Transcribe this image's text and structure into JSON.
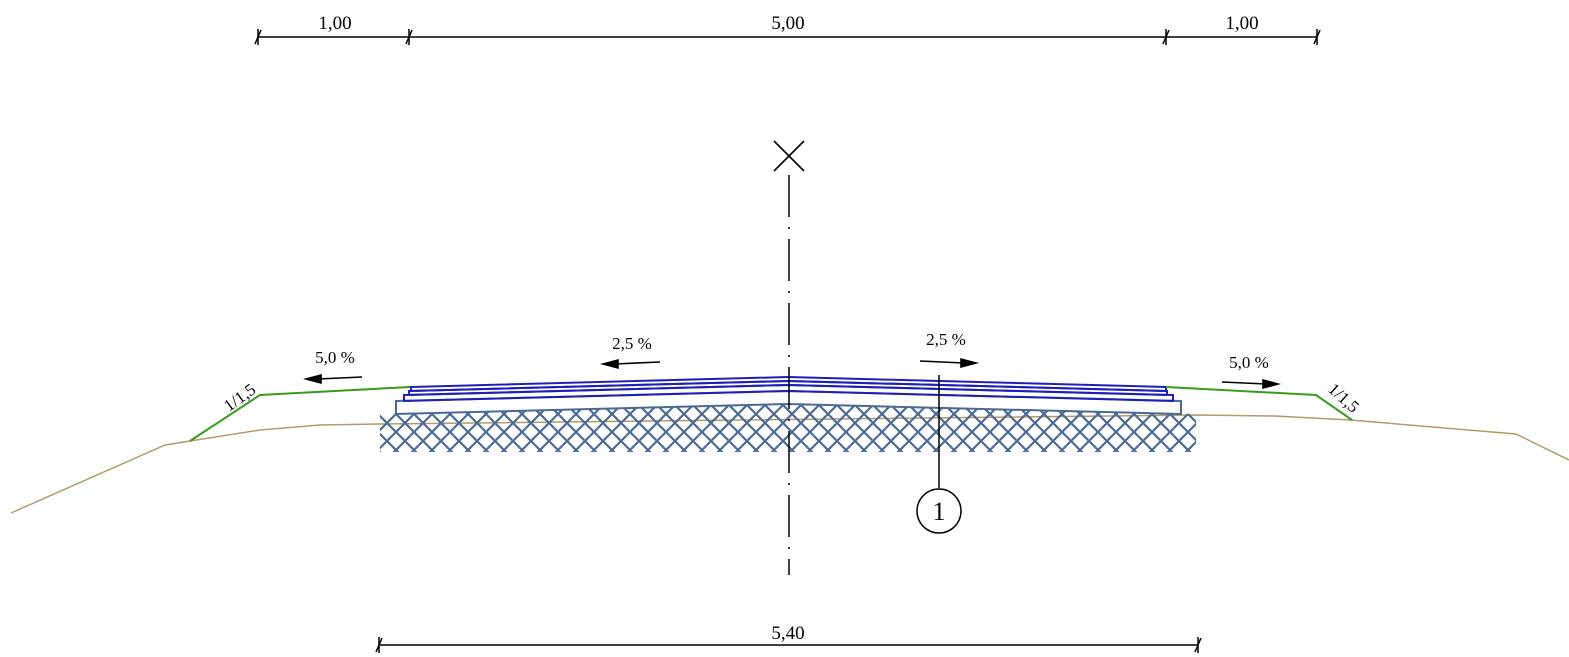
{
  "dimensions": {
    "top_left": "1,00",
    "top_middle": "5,00",
    "top_right": "1,00",
    "bottom": "5,40"
  },
  "slopes": {
    "shoulder_left": "5,0 %",
    "lane_left": "2,5 %",
    "lane_right": "2,5 %",
    "shoulder_right": "5,0 %"
  },
  "embankment": {
    "left": "1/1,5",
    "right": "1/1,5"
  },
  "callout": {
    "number": "1"
  },
  "colors": {
    "pavement": "#1f1fb8",
    "base_course": "#4a6a96",
    "hatch": "#4a6a96",
    "shoulder": "#3a9a1e",
    "terrain": "#b39a66",
    "line": "#000000"
  }
}
